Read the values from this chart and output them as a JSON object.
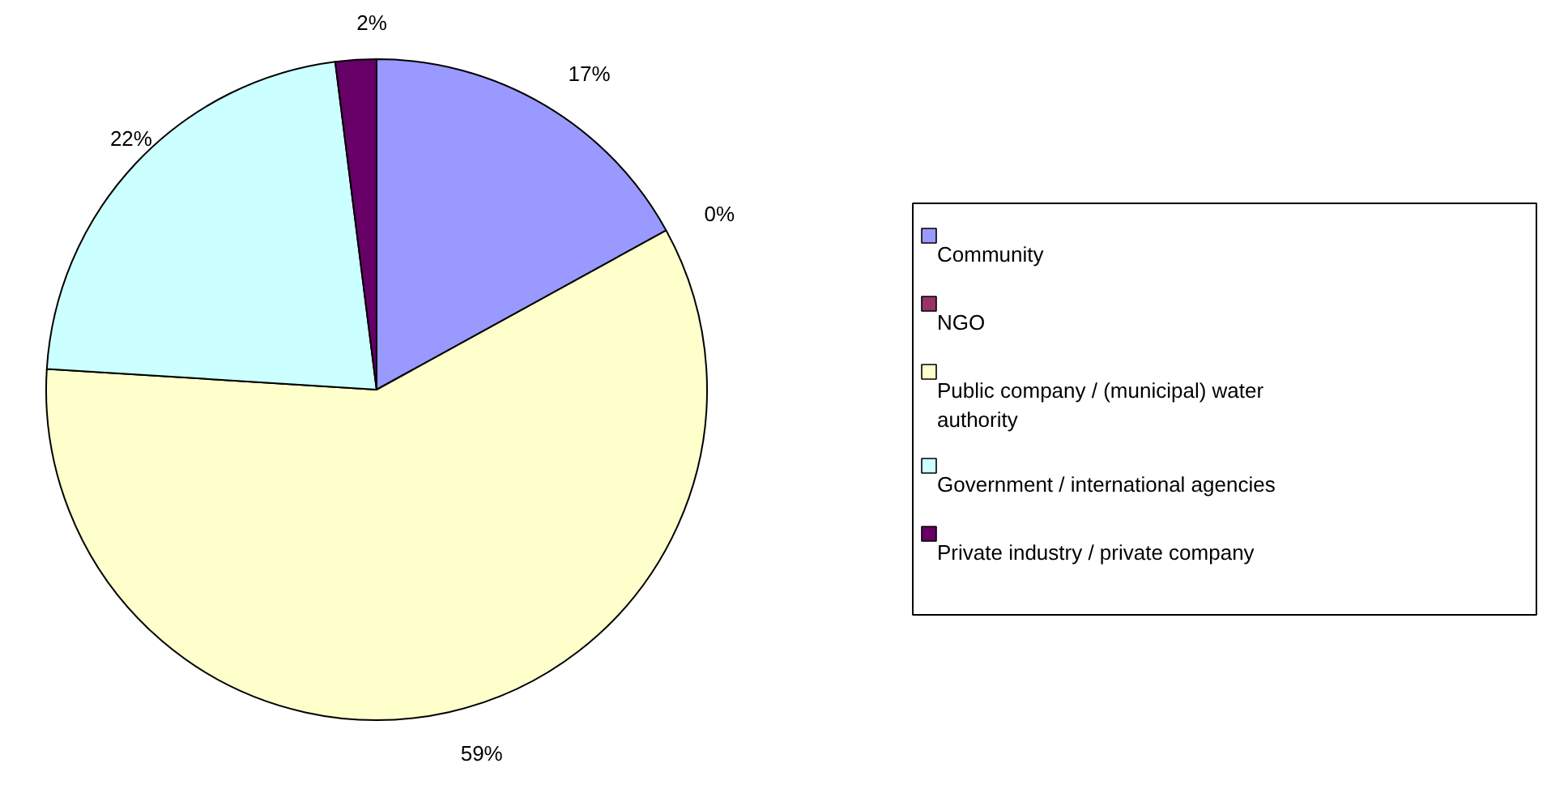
{
  "chart_data": {
    "type": "pie",
    "categories": [
      "Community",
      "NGO",
      "Public company / (municipal) water authority",
      "Government / international agencies",
      "Private industry / private company"
    ],
    "values": [
      17,
      0,
      59,
      22,
      2
    ],
    "colors": [
      "#9999ff",
      "#993366",
      "#ffffcc",
      "#ccffff",
      "#660066"
    ],
    "value_labels": [
      "17%",
      "0%",
      "59%",
      "22%",
      "2%"
    ],
    "legend": "right"
  }
}
